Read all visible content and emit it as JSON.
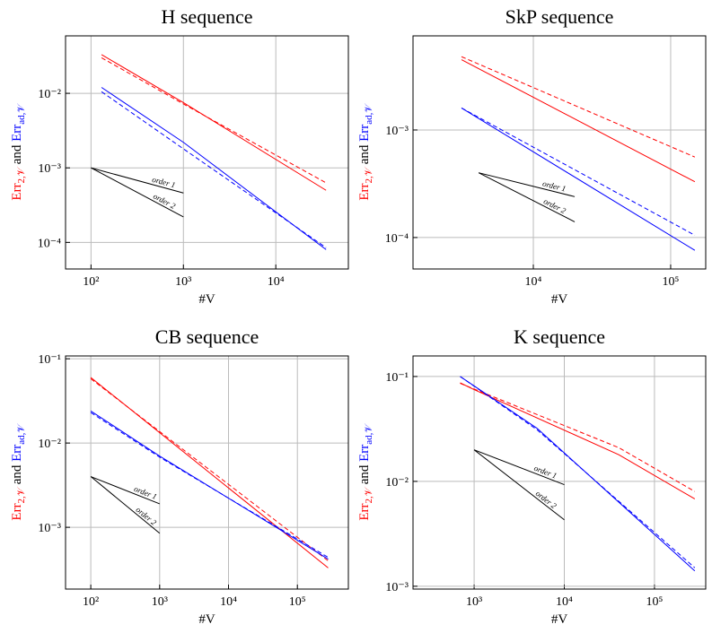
{
  "chart_data": [
    {
      "type": "line",
      "title": "H sequence",
      "xlabel": "#V",
      "ylabel": [
        {
          "text": "Err",
          "sub": "2,𝒱",
          "color": "#ff0000"
        },
        {
          "text": " and "
        },
        {
          "text": "Err",
          "sub": "ad,𝒱",
          "color": "#0000ff"
        }
      ],
      "xscale": "log",
      "yscale": "log",
      "grid": true,
      "xlim": [
        53,
        61000
      ],
      "ylim": [
        4.4e-05,
        0.059
      ],
      "xticks": [
        {
          "value": 100,
          "label": "10²"
        },
        {
          "value": 1000,
          "label": "10³"
        },
        {
          "value": 10000,
          "label": "10⁴"
        }
      ],
      "yticks": [
        {
          "value": 0.0001,
          "label": "10⁻⁴"
        },
        {
          "value": 0.001,
          "label": "10⁻³"
        },
        {
          "value": 0.01,
          "label": "10⁻²"
        }
      ],
      "series": [
        {
          "color": "#ff0000",
          "dash": false,
          "x": [
            130,
            1000,
            35000
          ],
          "values": [
            0.033,
            0.0075,
            0.0005
          ]
        },
        {
          "color": "#ff0000",
          "dash": true,
          "x": [
            130,
            1000,
            35000
          ],
          "values": [
            0.03,
            0.0072,
            0.00063
          ]
        },
        {
          "color": "#0000ff",
          "dash": false,
          "x": [
            130,
            1000,
            35000
          ],
          "values": [
            0.012,
            0.0022,
            8e-05
          ]
        },
        {
          "color": "#0000ff",
          "dash": true,
          "x": [
            130,
            1000,
            35000
          ],
          "values": [
            0.0105,
            0.0018,
            8.5e-05
          ]
        }
      ],
      "annotations": [
        {
          "label": "order 1",
          "x": [
            100,
            1000
          ],
          "y": [
            0.001,
            0.00046
          ]
        },
        {
          "label": "order 2",
          "x": [
            100,
            1000
          ],
          "y": [
            0.001,
            0.00022
          ]
        }
      ]
    },
    {
      "type": "line",
      "title": "SkP sequence",
      "xlabel": "#V",
      "ylabel": [
        {
          "text": "Err",
          "sub": "2,𝒱",
          "color": "#ff0000"
        },
        {
          "text": " and "
        },
        {
          "text": "Err",
          "sub": "ad,𝒱",
          "color": "#0000ff"
        }
      ],
      "xscale": "log",
      "yscale": "log",
      "grid": true,
      "xlim": [
        1330,
        180000
      ],
      "ylim": [
        5.1e-05,
        0.0075
      ],
      "xticks": [
        {
          "value": 10000,
          "label": "10⁴"
        },
        {
          "value": 100000,
          "label": "10⁵"
        }
      ],
      "yticks": [
        {
          "value": 0.0001,
          "label": "10⁻⁴"
        },
        {
          "value": 0.001,
          "label": "10⁻³"
        }
      ],
      "series": [
        {
          "color": "#ff0000",
          "dash": false,
          "x": [
            3000,
            150000
          ],
          "values": [
            0.0045,
            0.00033
          ]
        },
        {
          "color": "#ff0000",
          "dash": true,
          "x": [
            3000,
            150000
          ],
          "values": [
            0.0048,
            0.00056
          ]
        },
        {
          "color": "#0000ff",
          "dash": false,
          "x": [
            3000,
            150000
          ],
          "values": [
            0.0016,
            7.6e-05
          ]
        },
        {
          "color": "#0000ff",
          "dash": true,
          "x": [
            3000,
            150000
          ],
          "values": [
            0.0016,
            0.000105
          ]
        }
      ],
      "annotations": [
        {
          "label": "order 1",
          "x": [
            4000,
            20000
          ],
          "y": [
            0.0004,
            0.00024
          ]
        },
        {
          "label": "order 2",
          "x": [
            4000,
            20000
          ],
          "y": [
            0.0004,
            0.00014
          ]
        }
      ]
    },
    {
      "type": "line",
      "title": "CB sequence",
      "xlabel": "#V",
      "ylabel": [
        {
          "text": "Err",
          "sub": "2,𝒱",
          "color": "#ff0000"
        },
        {
          "text": " and "
        },
        {
          "text": "Err",
          "sub": "ad,𝒱",
          "color": "#0000ff"
        }
      ],
      "xscale": "log",
      "yscale": "log",
      "grid": true,
      "xlim": [
        43,
        550000
      ],
      "ylim": [
        0.000185,
        0.108
      ],
      "xticks": [
        {
          "value": 100,
          "label": "10²"
        },
        {
          "value": 1000,
          "label": "10³"
        },
        {
          "value": 10000,
          "label": "10⁴"
        },
        {
          "value": 100000,
          "label": "10⁵"
        }
      ],
      "yticks": [
        {
          "value": 0.001,
          "label": "10⁻³"
        },
        {
          "value": 0.01,
          "label": "10⁻²"
        },
        {
          "value": 0.1,
          "label": "10⁻¹"
        }
      ],
      "series": [
        {
          "color": "#ff0000",
          "dash": false,
          "x": [
            100,
            280000
          ],
          "values": [
            0.06,
            0.00033
          ]
        },
        {
          "color": "#ff0000",
          "dash": true,
          "x": [
            100,
            280000
          ],
          "values": [
            0.058,
            0.0004
          ]
        },
        {
          "color": "#0000ff",
          "dash": false,
          "x": [
            100,
            1000,
            280000
          ],
          "values": [
            0.024,
            0.007,
            0.00042
          ]
        },
        {
          "color": "#0000ff",
          "dash": true,
          "x": [
            100,
            1000,
            280000
          ],
          "values": [
            0.023,
            0.0068,
            0.00044
          ]
        }
      ],
      "annotations": [
        {
          "label": "order 1",
          "x": [
            100,
            1000
          ],
          "y": [
            0.004,
            0.0019
          ]
        },
        {
          "label": "order 2",
          "x": [
            100,
            1000
          ],
          "y": [
            0.004,
            0.00085
          ]
        }
      ]
    },
    {
      "type": "line",
      "title": "K sequence",
      "xlabel": "#V",
      "ylabel": [
        {
          "text": "Err",
          "sub": "2,𝒱",
          "color": "#ff0000"
        },
        {
          "text": " and "
        },
        {
          "text": "Err",
          "sub": "ad,𝒱",
          "color": "#0000ff"
        }
      ],
      "xscale": "log",
      "yscale": "log",
      "grid": true,
      "xlim": [
        210,
        370000
      ],
      "ylim": [
        0.00094,
        0.157
      ],
      "xticks": [
        {
          "value": 1000,
          "label": "10³"
        },
        {
          "value": 10000,
          "label": "10⁴"
        },
        {
          "value": 100000,
          "label": "10⁵"
        }
      ],
      "yticks": [
        {
          "value": 0.001,
          "label": "10⁻³"
        },
        {
          "value": 0.01,
          "label": "10⁻²"
        },
        {
          "value": 0.1,
          "label": "10⁻¹"
        }
      ],
      "series": [
        {
          "color": "#ff0000",
          "dash": false,
          "x": [
            700,
            1000,
            40000,
            280000
          ],
          "values": [
            0.087,
            0.075,
            0.018,
            0.0068
          ]
        },
        {
          "color": "#ff0000",
          "dash": true,
          "x": [
            700,
            40000,
            280000
          ],
          "values": [
            0.086,
            0.021,
            0.008
          ]
        },
        {
          "color": "#0000ff",
          "dash": false,
          "x": [
            700,
            5000,
            280000
          ],
          "values": [
            0.1,
            0.032,
            0.0014
          ]
        },
        {
          "color": "#0000ff",
          "dash": true,
          "x": [
            700,
            5000,
            280000
          ],
          "values": [
            0.1,
            0.031,
            0.0015
          ]
        }
      ],
      "annotations": [
        {
          "label": "order 1",
          "x": [
            1000,
            10000
          ],
          "y": [
            0.02,
            0.0093
          ]
        },
        {
          "label": "order 2",
          "x": [
            1000,
            10000
          ],
          "y": [
            0.02,
            0.0043
          ]
        }
      ]
    }
  ]
}
